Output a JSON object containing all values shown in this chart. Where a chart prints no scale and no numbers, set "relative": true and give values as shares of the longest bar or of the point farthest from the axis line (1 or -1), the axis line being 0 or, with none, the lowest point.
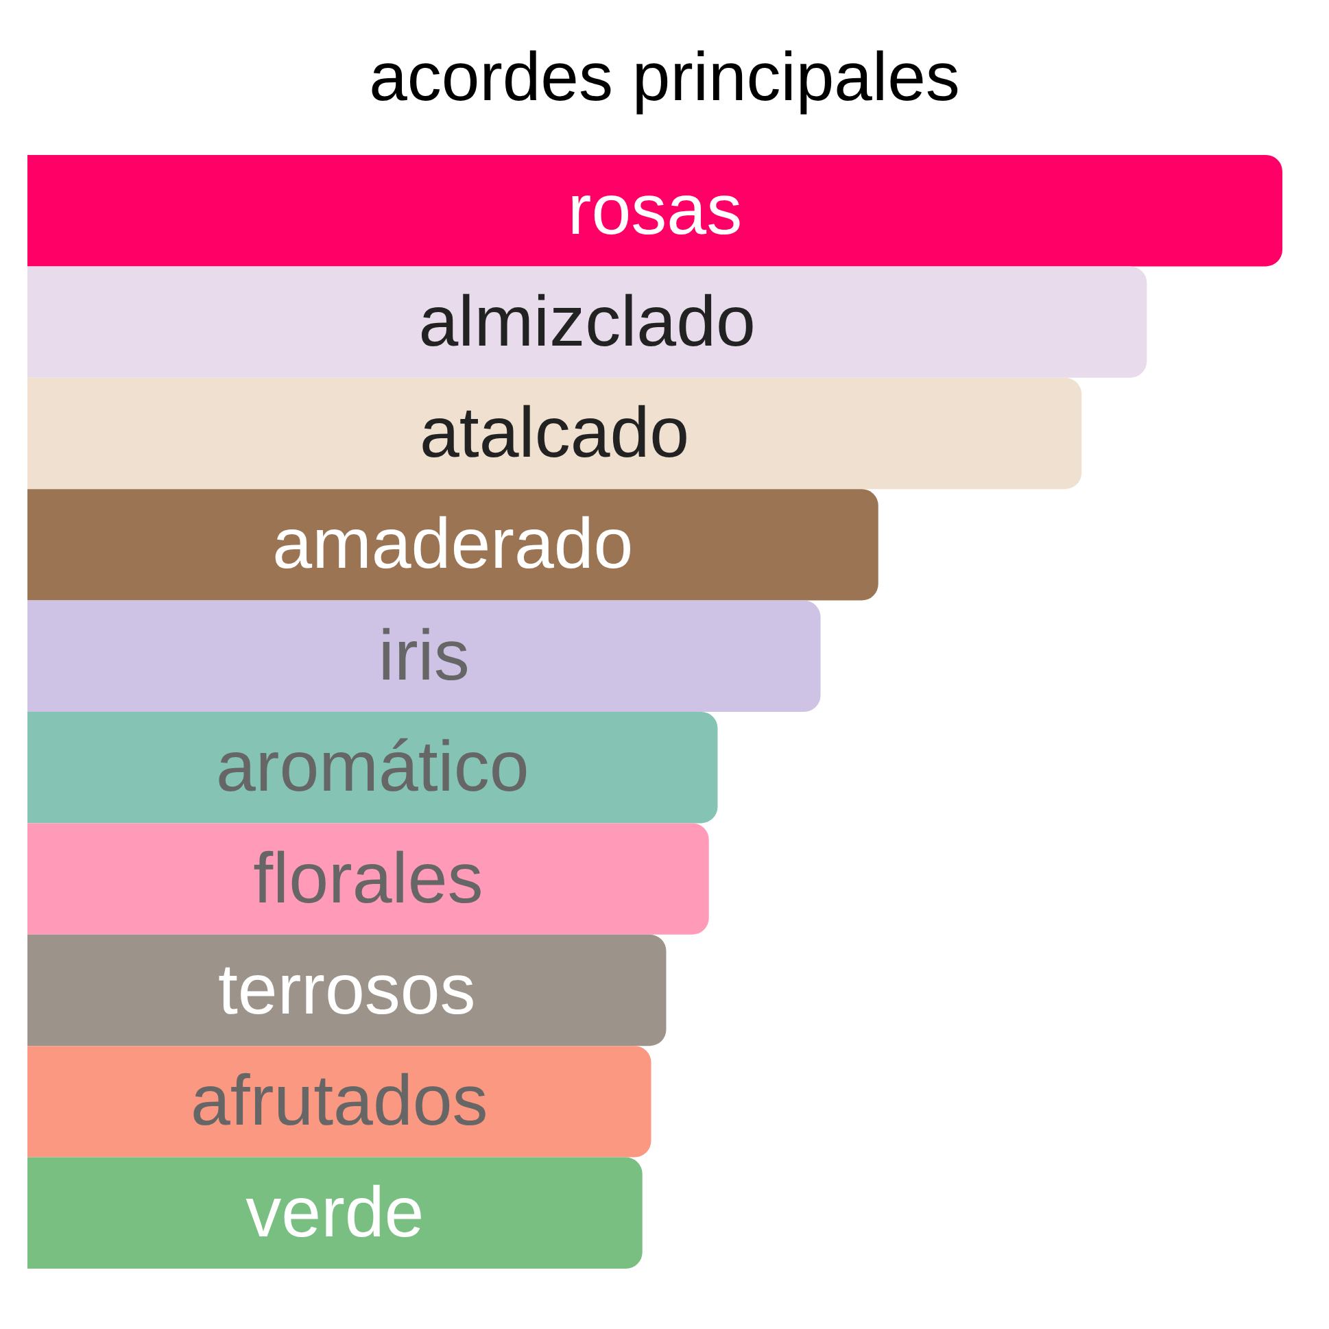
{
  "chart_data": {
    "type": "bar",
    "orientation": "horizontal",
    "relative": true,
    "title": "acordes principales",
    "categories": [
      "rosas",
      "almizclado",
      "atalcado",
      "amaderado",
      "iris",
      "aromático",
      "florales",
      "terrosos",
      "afrutados",
      "verde"
    ],
    "values": [
      1,
      0.892,
      0.84,
      0.678,
      0.632,
      0.55,
      0.543,
      0.509,
      0.497,
      0.49
    ],
    "colors": [
      "#ff0066",
      "#e8dcec",
      "#efe0d0",
      "#9b7453",
      "#cfc3e5",
      "#85c4b4",
      "#ff9bb8",
      "#9c948a",
      "#fa9882",
      "#7abf82"
    ]
  }
}
